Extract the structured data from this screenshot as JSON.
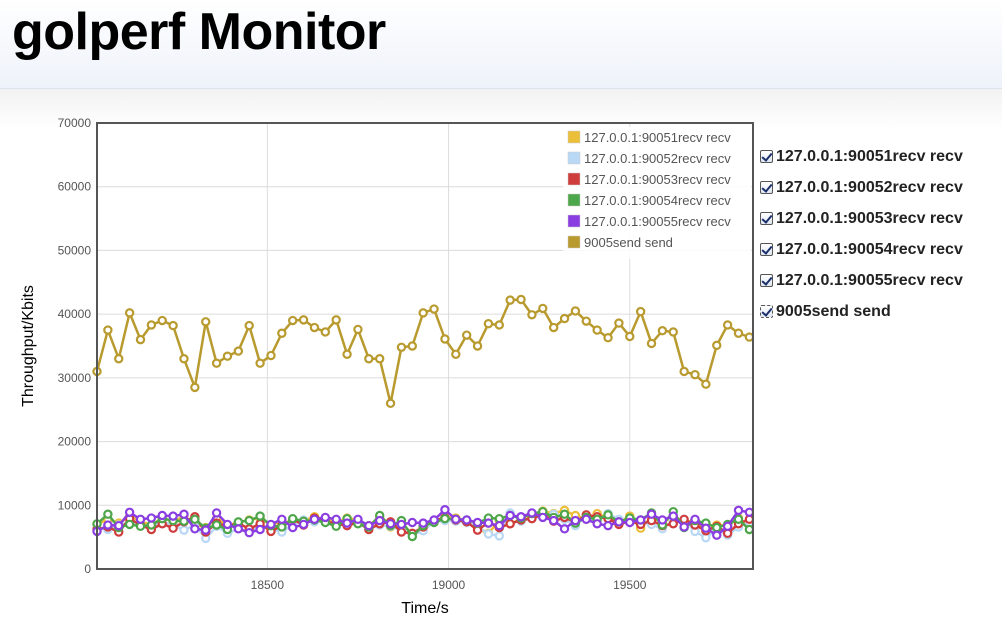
{
  "page": {
    "title": "golperf Monitor"
  },
  "toggles": [
    {
      "label": "127.0.0.1:90051recv recv",
      "checked": true
    },
    {
      "label": "127.0.0.1:90052recv recv",
      "checked": true
    },
    {
      "label": "127.0.0.1:90053recv recv",
      "checked": true
    },
    {
      "label": "127.0.0.1:90054recv recv",
      "checked": true
    },
    {
      "label": "127.0.0.1:90055recv recv",
      "checked": true
    },
    {
      "label": "9005send send",
      "checked": true
    }
  ],
  "chart_data": {
    "type": "line",
    "title": "",
    "xlabel": "Time/s",
    "ylabel": "Throughput/Kbits",
    "xlim": [
      18030,
      19840
    ],
    "ylim": [
      0,
      70000
    ],
    "xticks": [
      18500,
      19000,
      19500
    ],
    "yticks": [
      0,
      10000,
      20000,
      30000,
      40000,
      50000,
      60000,
      70000
    ],
    "grid": true,
    "legend_position": "top-right",
    "x": [
      18030,
      18060,
      18090,
      18120,
      18150,
      18180,
      18210,
      18240,
      18270,
      18300,
      18330,
      18360,
      18390,
      18420,
      18450,
      18480,
      18510,
      18540,
      18570,
      18600,
      18630,
      18660,
      18690,
      18720,
      18750,
      18780,
      18810,
      18840,
      18870,
      18900,
      18930,
      18960,
      18990,
      19020,
      19050,
      19080,
      19110,
      19140,
      19170,
      19200,
      19230,
      19260,
      19290,
      19320,
      19350,
      19380,
      19410,
      19440,
      19470,
      19500,
      19530,
      19560,
      19590,
      19620,
      19650,
      19680,
      19710,
      19740,
      19770,
      19800,
      19830
    ],
    "series": [
      {
        "name": "127.0.0.1:90051recv recv",
        "color": "#ecbf3b",
        "values": [
          7000,
          7800,
          7200,
          8200,
          7600,
          6800,
          8100,
          7400,
          8300,
          7000,
          6500,
          7900,
          6800,
          7300,
          7700,
          8000,
          6900,
          7500,
          7300,
          7600,
          8200,
          7800,
          7300,
          8000,
          7700,
          6800,
          8100,
          6600,
          7100,
          5600,
          6400,
          7600,
          8100,
          8000,
          7600,
          6300,
          5600,
          7600,
          7100,
          7800,
          8000,
          9100,
          8700,
          9200,
          8400,
          7800,
          8700,
          8000,
          7300,
          8300,
          6400,
          8100,
          7300,
          8200,
          7400,
          7600,
          6000,
          6900,
          6800,
          8000,
          6800
        ]
      },
      {
        "name": "127.0.0.1:90052recv recv",
        "color": "#b8d8f5",
        "values": [
          6400,
          6200,
          6900,
          7300,
          7000,
          6600,
          7400,
          6900,
          6100,
          6900,
          4800,
          6700,
          5600,
          6300,
          5900,
          6700,
          6300,
          5800,
          7000,
          7700,
          7400,
          7800,
          6800,
          7200,
          7500,
          6500,
          6900,
          6700,
          6100,
          5300,
          6000,
          7400,
          7600,
          7500,
          7300,
          6700,
          5500,
          5200,
          8800,
          7500,
          8000,
          8300,
          8600,
          7800,
          6800,
          8300,
          7500,
          8700,
          7800,
          7600,
          7300,
          7000,
          6300,
          7500,
          7700,
          5900,
          4900,
          6200,
          5300,
          6600,
          7300
        ]
      },
      {
        "name": "127.0.0.1:90053recv recv",
        "color": "#cf3c3c",
        "values": [
          6200,
          6600,
          5800,
          7900,
          6900,
          6200,
          7100,
          6400,
          7400,
          8200,
          5800,
          7200,
          6700,
          7200,
          6300,
          7100,
          5900,
          6800,
          7800,
          6900,
          8000,
          7500,
          7100,
          6800,
          7300,
          6200,
          7100,
          7400,
          5800,
          5600,
          6600,
          7600,
          8000,
          7700,
          7400,
          6100,
          7300,
          6500,
          7100,
          7700,
          7900,
          8600,
          7500,
          8100,
          7300,
          8500,
          8200,
          7900,
          7000,
          7500,
          7000,
          7600,
          6800,
          7100,
          7800,
          6900,
          6000,
          6700,
          5600,
          7100,
          7800
        ]
      },
      {
        "name": "127.0.0.1:90054recv recv",
        "color": "#4ea64a",
        "values": [
          7100,
          8600,
          6500,
          7000,
          6700,
          6900,
          7900,
          7600,
          7500,
          7800,
          6400,
          6900,
          6200,
          7400,
          7600,
          8300,
          6800,
          6600,
          7900,
          7500,
          7700,
          7300,
          6700,
          7900,
          7100,
          6600,
          8400,
          6800,
          7600,
          5100,
          6800,
          7300,
          7900,
          7800,
          7700,
          7200,
          8000,
          7900,
          8400,
          8000,
          8700,
          9000,
          8100,
          8600,
          7200,
          8100,
          7800,
          8500,
          7400,
          8000,
          7700,
          8800,
          6900,
          9000,
          6500,
          7600,
          7200,
          6500,
          7000,
          7800,
          6200
        ]
      },
      {
        "name": "127.0.0.1:90055recv recv",
        "color": "#8a3de0",
        "values": [
          5900,
          6900,
          6800,
          8900,
          7800,
          8000,
          8400,
          8300,
          8600,
          6300,
          6100,
          8800,
          7000,
          6300,
          5700,
          6200,
          7000,
          7800,
          6500,
          7000,
          7800,
          8100,
          7800,
          7200,
          7800,
          6800,
          7600,
          7100,
          7000,
          7300,
          7200,
          7700,
          9300,
          7800,
          7700,
          7300,
          7200,
          6800,
          8400,
          8200,
          8800,
          8100,
          7600,
          6300,
          7600,
          7800,
          7100,
          6800,
          7400,
          7300,
          7700,
          8600,
          7700,
          8300,
          6600,
          7800,
          6400,
          5300,
          6700,
          9200,
          8900
        ]
      },
      {
        "name": "9005send send",
        "color": "#b89a2e",
        "values": [
          31000,
          37500,
          33000,
          40200,
          36000,
          38300,
          39000,
          38200,
          33000,
          28500,
          38800,
          32300,
          33400,
          34200,
          38200,
          32300,
          33500,
          37000,
          39000,
          39100,
          37900,
          37200,
          39100,
          33700,
          37600,
          33000,
          33000,
          26000,
          34800,
          35000,
          40200,
          40800,
          36100,
          33700,
          36700,
          35000,
          38500,
          38300,
          42200,
          42300,
          39900,
          40900,
          37900,
          39300,
          40500,
          38900,
          37500,
          36300,
          38600,
          36500,
          40400,
          35400,
          37400,
          37200,
          31000,
          30500,
          29000,
          35100,
          38300,
          37000,
          36400
        ]
      }
    ]
  }
}
